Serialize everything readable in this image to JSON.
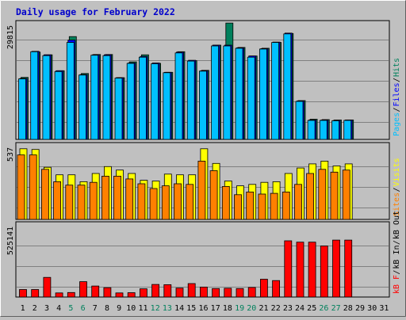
{
  "chart_data": {
    "type": "bar",
    "title": "Daily usage for February 2022",
    "days": [
      "1",
      "2",
      "3",
      "4",
      "5",
      "6",
      "7",
      "8",
      "9",
      "10",
      "11",
      "12",
      "13",
      "14",
      "15",
      "16",
      "17",
      "18",
      "19",
      "20",
      "21",
      "22",
      "23",
      "24",
      "25",
      "26",
      "27",
      "28",
      "29",
      "30",
      "31"
    ],
    "weekend_days": [
      "5",
      "6",
      "12",
      "13",
      "19",
      "20",
      "26",
      "27"
    ],
    "panels": [
      {
        "name": "top",
        "max_label": "29815",
        "ymax": 29815,
        "legend": [
          "Pages",
          "Files",
          "Hits"
        ],
        "series": [
          {
            "name": "Hits",
            "color": "#00805c",
            "values": [
              16000,
              22500,
              21800,
              17700,
              26500,
              17000,
              21900,
              21900,
              15900,
              20000,
              21800,
              19600,
              17300,
              22600,
              20300,
              17800,
              24300,
              30000,
              23700,
              21500,
              23500,
              25000,
              27300,
              10000,
              5200,
              5100,
              5000,
              5000
            ]
          },
          {
            "name": "Files",
            "color": "#0000ff",
            "values": [
              15700,
              22700,
              21800,
              17700,
              25600,
              16700,
              21800,
              21800,
              15900,
              19700,
              21400,
              19700,
              17300,
              22500,
              20400,
              17700,
              24300,
              24300,
              23600,
              21500,
              23400,
              25100,
              27400,
              9900,
              5000,
              5000,
              4900,
              5000
            ]
          },
          {
            "name": "Pages",
            "color": "#00c0ff",
            "values": [
              15600,
              22600,
              21600,
              17500,
              25000,
              16600,
              21700,
              21600,
              15800,
              19600,
              21200,
              19500,
              17200,
              22300,
              20200,
              17600,
              24100,
              24100,
              23500,
              21200,
              23300,
              25000,
              27200,
              9800,
              4900,
              4900,
              4800,
              4900
            ]
          }
        ]
      },
      {
        "name": "middle",
        "max_label": "537",
        "ymax": 537,
        "legend": [
          "Sites",
          "Visits"
        ],
        "series": [
          {
            "name": "Visits",
            "color": "#ffff00",
            "values": [
              515,
              510,
              380,
              325,
              325,
              275,
              335,
              385,
              360,
              335,
              285,
              280,
              330,
              325,
              325,
              515,
              408,
              280,
              245,
              255,
              270,
              275,
              335,
              375,
              405,
              425,
              390,
              405
            ]
          },
          {
            "name": "Sites",
            "color": "#ff8000",
            "values": [
              470,
              470,
              365,
              275,
              250,
              250,
              270,
              315,
              315,
              295,
              260,
              225,
              245,
              260,
              255,
              425,
              355,
              240,
              180,
              200,
              185,
              190,
              200,
              255,
              335,
              365,
              345,
              360
            ]
          }
        ]
      },
      {
        "name": "bottom",
        "max_label": "525141",
        "ymax": 525141,
        "legend": [
          "kB F",
          "kB In",
          "kB Out"
        ],
        "series": [
          {
            "name": "kB F",
            "color": "#ff0000",
            "values": [
              55000,
              55000,
              143000,
              30000,
              33000,
              112000,
              80000,
              68000,
              30000,
              32000,
              60000,
              92000,
              90000,
              65000,
              98000,
              73000,
              62000,
              64000,
              62000,
              70000,
              130000,
              120000,
              410000,
              400000,
              400000,
              372000,
              415000,
              415000
            ]
          }
        ]
      }
    ]
  }
}
